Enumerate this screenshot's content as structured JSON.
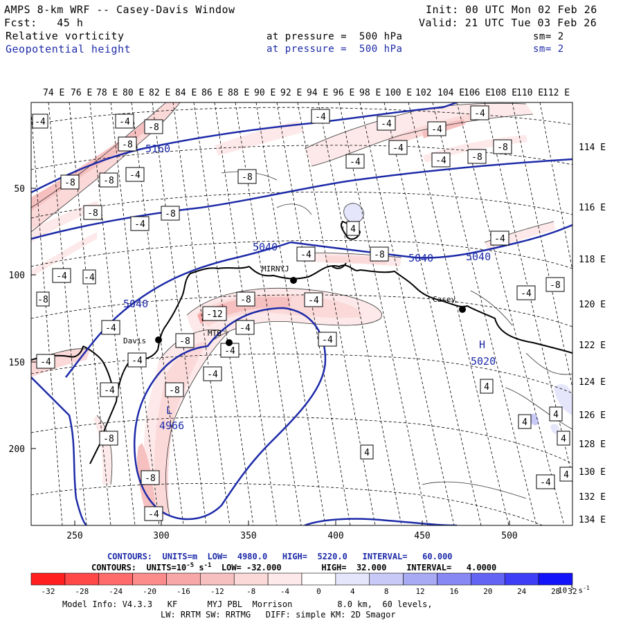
{
  "header": {
    "title": "AMPS 8-km WRF -- Casey-Davis Window",
    "init": "Init: 00 UTC Mon 02 Feb 26",
    "fcst": "Fcst:   45 h",
    "valid": "Valid: 21 UTC Tue 03 Feb 26",
    "field1": {
      "name": "Relative vorticity",
      "pressure": "at pressure =  500 hPa",
      "sm": "sm= 2"
    },
    "field2": {
      "name": "Geopotential height",
      "pressure": "at pressure =  500 hPa",
      "sm": "sm= 2"
    }
  },
  "map": {
    "top_lon_labels": [
      "74 E",
      "76 E",
      "78 E",
      "80 E",
      "82 E",
      "84 E",
      "86 E",
      "88 E",
      "90 E",
      "92 E",
      "94 E",
      "96 E",
      "98 E",
      "100 E",
      "102",
      "104 E",
      "106 E",
      "108 E",
      "110 E",
      "112 E"
    ],
    "right_lon_labels": [
      "114 E",
      "116 E",
      "118 E",
      "120 E",
      "122 E",
      "124 E",
      "126 E",
      "128 E",
      "130 E",
      "132 E",
      "134 E"
    ],
    "left_y_labels": [
      "50",
      "100",
      "150",
      "200"
    ],
    "bottom_x_labels": [
      "250",
      "300",
      "350",
      "400",
      "450",
      "500"
    ],
    "stations": [
      {
        "name": "MIRNYJ"
      },
      {
        "name": "Casey"
      },
      {
        "name": "Davis"
      },
      {
        "name": "MTB"
      }
    ],
    "height_labels": [
      "5160",
      "5040",
      "5040",
      "5040",
      "5040",
      "5020",
      "4966"
    ],
    "center_marks": [
      "L",
      "H"
    ],
    "vort_labels": [
      "-4",
      "-4",
      "-8",
      "-8",
      "-8",
      "-8",
      "-4",
      "-8",
      "-8",
      "-4",
      "-4",
      "-4",
      "-8",
      "-8",
      "-4",
      "-4",
      "-4",
      "-4",
      "-4",
      "-4",
      "-4",
      "-8",
      "-8",
      "-12",
      "-8",
      "-4",
      "-4",
      "-4",
      "-4",
      "-8",
      "-4",
      "-4",
      "-8",
      "-4",
      "-4",
      "-4",
      "-8",
      "-8",
      "-4",
      "4",
      "4",
      "4",
      "4",
      "4",
      "4",
      "4",
      "-4",
      "-4",
      "-8",
      "-4",
      "-8",
      "-4"
    ]
  },
  "contours": {
    "line1": {
      "label": "CONTOURS:  UNITS=m  LOW=  4980.0",
      "high": "HIGH=  5220.0",
      "interval": "INTERVAL=   60.000"
    },
    "line2": {
      "label": "CONTOURS:  UNITS=10",
      "exp": "-5",
      "unit_s": " s",
      "unit_exp": "-1",
      "low": "  LOW= -32.000",
      "high": "HIGH=  32.000",
      "interval": "INTERVAL=   4.0000"
    }
  },
  "colorbar": {
    "labels": [
      "-32",
      "-28",
      "-24",
      "-20",
      "-16",
      "-12",
      "-8",
      "-4",
      "0",
      "4",
      "8",
      "12",
      "16",
      "20",
      "24",
      "28",
      "32"
    ],
    "unit": "10",
    "unit_exp": "-5",
    "unit_s": " s",
    "unit_s_exp": "-1",
    "colors": [
      "#ff1f1f",
      "#ff4848",
      "#ff6a6a",
      "#fc8b8b",
      "#f7a7a7",
      "#f6c0c0",
      "#fbd9d9",
      "#fde9e9",
      "#ffffff",
      "#ffffff",
      "#e5e6fb",
      "#c8c9f7",
      "#a9aaf4",
      "#8788f3",
      "#6364f3",
      "#3d3ef6",
      "#1414fa"
    ]
  },
  "model_info": {
    "line1": "Model Info: V4.3.3   KF      MYJ PBL  Morrison         8.0 km,  60 levels,",
    "line2": "LW: RRTM SW: RRTMG   DIFF: simple KM: 2D Smagor"
  }
}
